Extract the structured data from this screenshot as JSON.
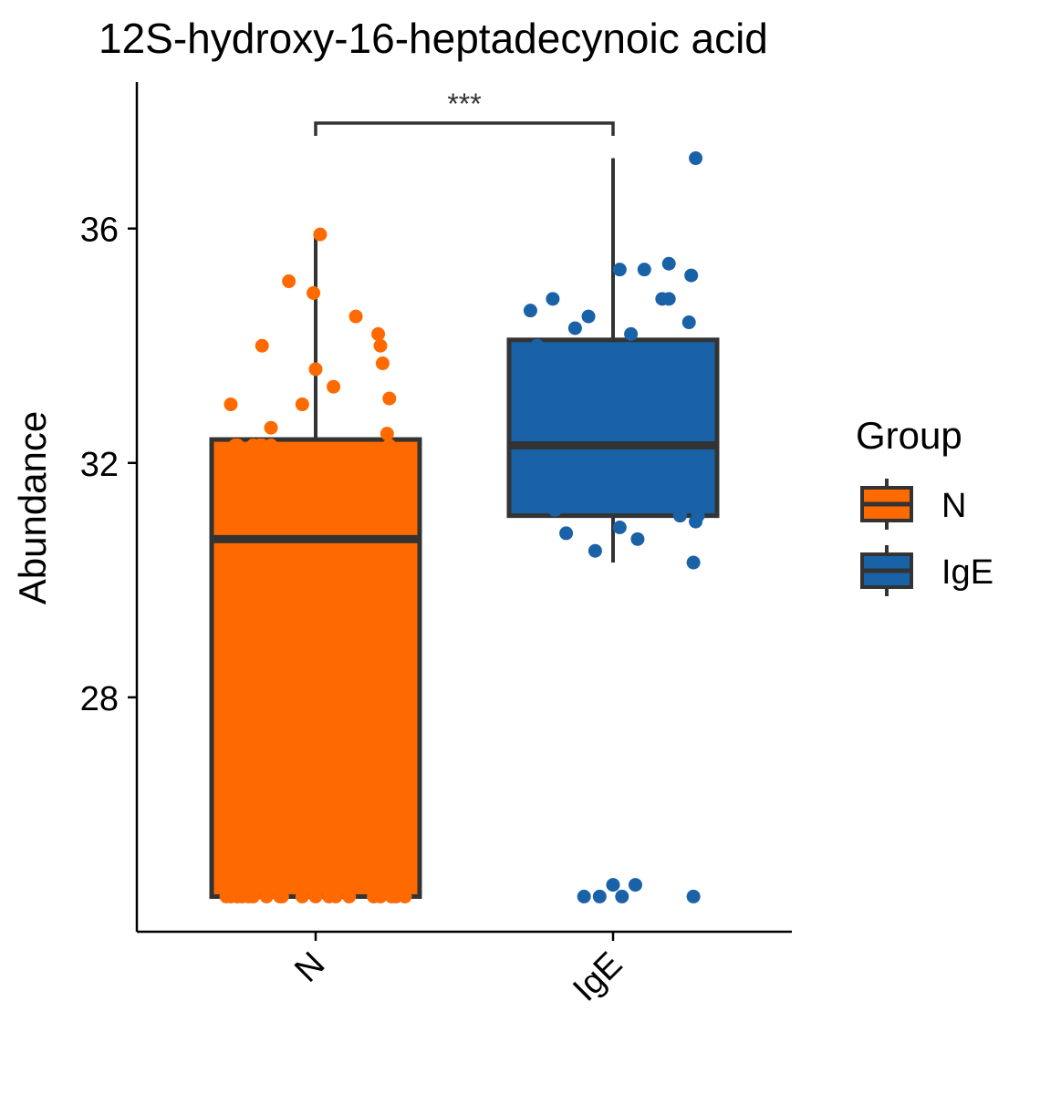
{
  "chart_data": {
    "type": "boxplot",
    "title": "12S-hydroxy-16-heptadecynoic acid",
    "xlabel": "",
    "ylabel": "Abundance",
    "categories": [
      "N",
      "IgE"
    ],
    "y_ticks": [
      28,
      32,
      36
    ],
    "ylim": [
      24.0,
      38.5
    ],
    "grid": false,
    "legend": {
      "title": "Group",
      "position": "right",
      "entries": [
        "N",
        "IgE"
      ]
    },
    "colors": {
      "N": "#ff6a00",
      "IgE": "#1a62a8",
      "outline": "#333333"
    },
    "significance": {
      "label": "***",
      "between": [
        "N",
        "IgE"
      ],
      "y": 37.8
    },
    "boxes": [
      {
        "group": "N",
        "whisker_low": 24.6,
        "q1": 24.6,
        "median": 30.7,
        "q3": 32.4,
        "whisker_high": 35.9
      },
      {
        "group": "IgE",
        "whisker_low": 30.3,
        "q1": 31.1,
        "median": 32.3,
        "q3": 34.1,
        "whisker_high": 37.2
      }
    ],
    "series": [
      {
        "name": "N",
        "points": [
          [
            -0.4,
            24.6
          ],
          [
            -0.38,
            24.6
          ],
          [
            -0.35,
            24.6
          ],
          [
            -0.33,
            24.6
          ],
          [
            -0.3,
            24.6
          ],
          [
            -0.28,
            24.6
          ],
          [
            -0.22,
            24.6
          ],
          [
            -0.16,
            24.6
          ],
          [
            -0.15,
            24.6
          ],
          [
            -0.06,
            24.6
          ],
          [
            0.0,
            24.6
          ],
          [
            0.06,
            24.6
          ],
          [
            0.09,
            24.6
          ],
          [
            0.15,
            24.6
          ],
          [
            0.26,
            24.6
          ],
          [
            0.29,
            24.6
          ],
          [
            0.34,
            24.6
          ],
          [
            0.36,
            24.6
          ],
          [
            0.4,
            24.6
          ],
          [
            -0.4,
            25.0
          ],
          [
            -0.35,
            24.8
          ],
          [
            -0.39,
            29.9
          ],
          [
            -0.38,
            31.0
          ],
          [
            -0.2,
            30.8
          ],
          [
            -0.08,
            30.6
          ],
          [
            0.29,
            30.7
          ],
          [
            -0.36,
            32.3
          ],
          [
            -0.35,
            32.3
          ],
          [
            -0.28,
            32.3
          ],
          [
            -0.25,
            32.3
          ],
          [
            -0.24,
            32.3
          ],
          [
            -0.2,
            32.3
          ],
          [
            0.33,
            32.3
          ],
          [
            -0.2,
            32.6
          ],
          [
            0.32,
            32.5
          ],
          [
            -0.38,
            33.0
          ],
          [
            -0.06,
            33.0
          ],
          [
            0.33,
            33.1
          ],
          [
            0.0,
            33.6
          ],
          [
            0.08,
            33.3
          ],
          [
            0.3,
            33.7
          ],
          [
            -0.24,
            34.0
          ],
          [
            0.29,
            34.0
          ],
          [
            0.28,
            34.2
          ],
          [
            0.18,
            34.5
          ],
          [
            -0.12,
            35.1
          ],
          [
            -0.01,
            34.9
          ],
          [
            0.02,
            35.9
          ],
          [
            0.37,
            31.5
          ],
          [
            0.35,
            31.4
          ]
        ]
      },
      {
        "name": "IgE",
        "points": [
          [
            -0.13,
            24.6
          ],
          [
            -0.06,
            24.6
          ],
          [
            0.04,
            24.6
          ],
          [
            0.36,
            24.6
          ],
          [
            0.0,
            24.8
          ],
          [
            0.1,
            24.8
          ],
          [
            -0.21,
            30.8
          ],
          [
            -0.08,
            30.5
          ],
          [
            0.03,
            30.9
          ],
          [
            0.11,
            30.7
          ],
          [
            0.36,
            30.3
          ],
          [
            0.3,
            31.1
          ],
          [
            0.37,
            31.0
          ],
          [
            0.38,
            31.1
          ],
          [
            -0.26,
            31.2
          ],
          [
            -0.33,
            32.3
          ],
          [
            -0.21,
            32.3
          ],
          [
            -0.05,
            32.3
          ],
          [
            0.28,
            32.3
          ],
          [
            0.33,
            32.3
          ],
          [
            -0.34,
            34.0
          ],
          [
            -0.17,
            34.3
          ],
          [
            -0.11,
            34.5
          ],
          [
            0.08,
            34.2
          ],
          [
            0.34,
            34.4
          ],
          [
            -0.37,
            34.6
          ],
          [
            -0.27,
            34.8
          ],
          [
            0.22,
            34.8
          ],
          [
            0.25,
            34.8
          ],
          [
            0.03,
            35.3
          ],
          [
            0.14,
            35.3
          ],
          [
            0.25,
            35.4
          ],
          [
            0.35,
            35.2
          ],
          [
            0.37,
            37.2
          ]
        ]
      }
    ]
  }
}
